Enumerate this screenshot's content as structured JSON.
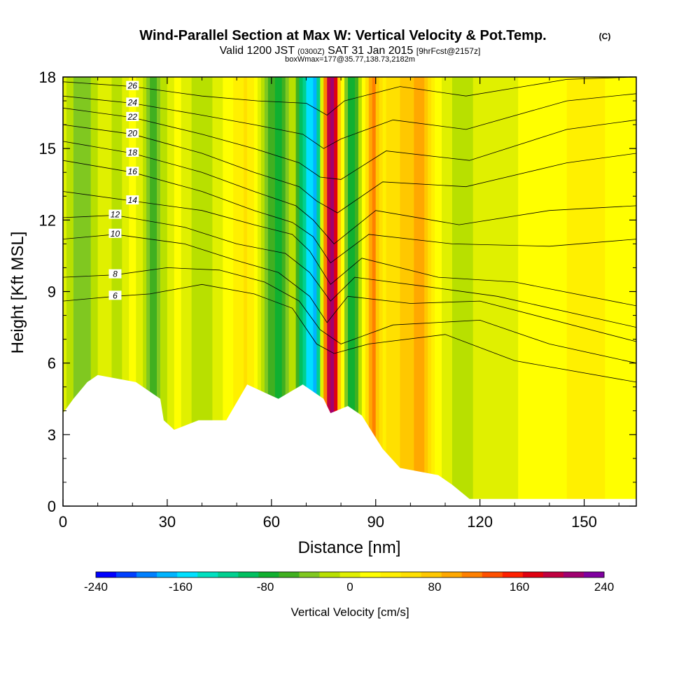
{
  "title": {
    "main": "Wind-Parallel Section at Max W: Vertical Velocity & Pot.Temp.",
    "copyright": "(C)",
    "valid_prefix": "Valid 1200 JST",
    "valid_utc": "(0300Z)",
    "valid_date": "SAT 31 Jan 2015",
    "forecast": "[9hrFcst@2157z]",
    "box": "boxWmax=177@35.77,138.73,2182m"
  },
  "chart_data": {
    "type": "heatmap",
    "xlabel": "Distance [nm]",
    "ylabel": "Height [Kft MSL]",
    "xlim": [
      0,
      165
    ],
    "ylim": [
      0,
      18
    ],
    "x_ticks": [
      0,
      30,
      60,
      90,
      120,
      150
    ],
    "y_ticks": [
      0,
      3,
      6,
      9,
      12,
      15,
      18
    ],
    "colorbar": {
      "label": "Vertical Velocity [cm/s]",
      "range": [
        -240,
        240
      ],
      "tick_values": [
        -240,
        -160,
        -80,
        0,
        80,
        160,
        240
      ],
      "tick_labels": [
        "-240",
        "-160",
        "-80",
        "0",
        "80",
        "160",
        "240"
      ],
      "colors": [
        "#0000ff",
        "#0040ff",
        "#0080ff",
        "#00b4ff",
        "#00e0ff",
        "#00e0c0",
        "#00d090",
        "#00c060",
        "#10b030",
        "#40b020",
        "#80c820",
        "#b8e000",
        "#e0f000",
        "#ffff00",
        "#fff000",
        "#ffe000",
        "#ffc800",
        "#ffa800",
        "#ff8000",
        "#ff5000",
        "#ff2000",
        "#e00010",
        "#c00040",
        "#a00070",
        "#8000a0"
      ]
    },
    "wind_bands_cm_s": [
      {
        "x": 0,
        "w": 0
      },
      {
        "x": 6,
        "w": -50
      },
      {
        "x": 12,
        "w": 10
      },
      {
        "x": 16,
        "w": -25
      },
      {
        "x": 20,
        "w": 25
      },
      {
        "x": 26,
        "w": -55
      },
      {
        "x": 33,
        "w": 20
      },
      {
        "x": 40,
        "w": -30
      },
      {
        "x": 47,
        "w": 15
      },
      {
        "x": 53,
        "w": 55
      },
      {
        "x": 58,
        "w": -20
      },
      {
        "x": 62,
        "w": -95
      },
      {
        "x": 66,
        "w": -10
      },
      {
        "x": 70,
        "w": -140
      },
      {
        "x": 73,
        "w": -175
      },
      {
        "x": 76,
        "w": 175
      },
      {
        "x": 78,
        "w": 215
      },
      {
        "x": 80,
        "w": 40
      },
      {
        "x": 83,
        "w": -100
      },
      {
        "x": 86,
        "w": 0
      },
      {
        "x": 89,
        "w": 120
      },
      {
        "x": 92,
        "w": 40
      },
      {
        "x": 97,
        "w": 70
      },
      {
        "x": 103,
        "w": 95
      },
      {
        "x": 108,
        "w": 20
      },
      {
        "x": 113,
        "w": -20
      },
      {
        "x": 120,
        "w": -5
      },
      {
        "x": 135,
        "w": 15
      },
      {
        "x": 150,
        "w": 35
      },
      {
        "x": 165,
        "w": 20
      }
    ],
    "terrain_kft": [
      {
        "x": 0,
        "z": 3.9
      },
      {
        "x": 3,
        "z": 4.5
      },
      {
        "x": 7,
        "z": 5.2
      },
      {
        "x": 10,
        "z": 5.5
      },
      {
        "x": 21,
        "z": 5.2
      },
      {
        "x": 25,
        "z": 4.8
      },
      {
        "x": 28,
        "z": 4.5
      },
      {
        "x": 29,
        "z": 3.6
      },
      {
        "x": 32,
        "z": 3.2
      },
      {
        "x": 39,
        "z": 3.6
      },
      {
        "x": 47,
        "z": 3.6
      },
      {
        "x": 53,
        "z": 5.1
      },
      {
        "x": 62,
        "z": 4.5
      },
      {
        "x": 69,
        "z": 5.1
      },
      {
        "x": 75,
        "z": 4.5
      },
      {
        "x": 77,
        "z": 3.9
      },
      {
        "x": 82,
        "z": 4.2
      },
      {
        "x": 86,
        "z": 3.8
      },
      {
        "x": 92,
        "z": 2.4
      },
      {
        "x": 97,
        "z": 1.6
      },
      {
        "x": 108,
        "z": 1.3
      },
      {
        "x": 112,
        "z": 0.9
      },
      {
        "x": 117,
        "z": 0.3
      },
      {
        "x": 165,
        "z": 0.3
      }
    ],
    "theta_contours": [
      {
        "label": "6",
        "points": [
          [
            0,
            8.6
          ],
          [
            15,
            8.8
          ],
          [
            25,
            8.9
          ],
          [
            40,
            9.3
          ],
          [
            55,
            8.9
          ],
          [
            66,
            8.3
          ],
          [
            73,
            6.8
          ],
          [
            78,
            6.4
          ],
          [
            88,
            6.8
          ],
          [
            110,
            7.2
          ],
          [
            130,
            6.1
          ],
          [
            165,
            5.2
          ]
        ]
      },
      {
        "label": "8",
        "points": [
          [
            0,
            9.6
          ],
          [
            15,
            9.7
          ],
          [
            30,
            10.0
          ],
          [
            45,
            9.9
          ],
          [
            58,
            9.4
          ],
          [
            68,
            8.6
          ],
          [
            74,
            7.4
          ],
          [
            80,
            6.8
          ],
          [
            95,
            7.6
          ],
          [
            120,
            7.8
          ],
          [
            140,
            6.8
          ],
          [
            165,
            6.0
          ]
        ]
      },
      {
        "label": "10",
        "points": [
          [
            0,
            11.2
          ],
          [
            15,
            11.4
          ],
          [
            35,
            11.0
          ],
          [
            50,
            10.3
          ],
          [
            62,
            9.8
          ],
          [
            71,
            8.8
          ],
          [
            76,
            7.7
          ],
          [
            82,
            8.8
          ],
          [
            100,
            8.5
          ],
          [
            120,
            8.6
          ],
          [
            165,
            6.9
          ]
        ]
      },
      {
        "label": "12",
        "points": [
          [
            0,
            12.1
          ],
          [
            15,
            12.2
          ],
          [
            35,
            11.7
          ],
          [
            50,
            11.0
          ],
          [
            64,
            10.6
          ],
          [
            71,
            9.8
          ],
          [
            77,
            8.6
          ],
          [
            84,
            9.6
          ],
          [
            105,
            9.2
          ],
          [
            125,
            8.8
          ],
          [
            165,
            7.5
          ]
        ]
      },
      {
        "label": "14",
        "points": [
          [
            0,
            13.2
          ],
          [
            20,
            12.8
          ],
          [
            40,
            12.4
          ],
          [
            55,
            11.8
          ],
          [
            66,
            11.4
          ],
          [
            71,
            10.7
          ],
          [
            77,
            9.3
          ],
          [
            86,
            10.4
          ],
          [
            108,
            9.6
          ],
          [
            130,
            9.4
          ],
          [
            165,
            8.4
          ]
        ]
      },
      {
        "label": "16",
        "points": [
          [
            0,
            14.5
          ],
          [
            20,
            14.0
          ],
          [
            40,
            13.2
          ],
          [
            55,
            12.4
          ],
          [
            66,
            11.9
          ],
          [
            72,
            11.3
          ],
          [
            77,
            10.2
          ],
          [
            88,
            11.4
          ],
          [
            112,
            11.0
          ],
          [
            140,
            10.9
          ],
          [
            165,
            11.2
          ]
        ]
      },
      {
        "label": "18",
        "points": [
          [
            0,
            15.3
          ],
          [
            20,
            14.8
          ],
          [
            40,
            14.0
          ],
          [
            55,
            13.2
          ],
          [
            67,
            12.6
          ],
          [
            72,
            12.0
          ],
          [
            78,
            11.0
          ],
          [
            90,
            12.4
          ],
          [
            114,
            11.8
          ],
          [
            140,
            12.4
          ],
          [
            165,
            12.6
          ]
        ]
      },
      {
        "label": "20",
        "points": [
          [
            0,
            16.0
          ],
          [
            20,
            15.6
          ],
          [
            40,
            14.8
          ],
          [
            55,
            14.0
          ],
          [
            68,
            13.4
          ],
          [
            73,
            12.8
          ],
          [
            79,
            12.3
          ],
          [
            92,
            13.6
          ],
          [
            116,
            13.4
          ],
          [
            145,
            14.4
          ],
          [
            165,
            14.8
          ]
        ]
      },
      {
        "label": "22",
        "points": [
          [
            0,
            16.7
          ],
          [
            20,
            16.3
          ],
          [
            40,
            15.6
          ],
          [
            55,
            15.0
          ],
          [
            68,
            14.4
          ],
          [
            74,
            13.8
          ],
          [
            80,
            13.7
          ],
          [
            93,
            14.9
          ],
          [
            117,
            14.5
          ],
          [
            145,
            15.8
          ],
          [
            165,
            16.2
          ]
        ]
      },
      {
        "label": "24",
        "points": [
          [
            0,
            17.2
          ],
          [
            20,
            16.9
          ],
          [
            40,
            16.4
          ],
          [
            55,
            16.0
          ],
          [
            69,
            15.6
          ],
          [
            75,
            15.0
          ],
          [
            80,
            15.4
          ],
          [
            95,
            16.2
          ],
          [
            116,
            15.8
          ],
          [
            145,
            17.0
          ],
          [
            165,
            17.3
          ]
        ]
      },
      {
        "label": "26",
        "points": [
          [
            0,
            17.8
          ],
          [
            20,
            17.6
          ],
          [
            40,
            17.2
          ],
          [
            56,
            17.0
          ],
          [
            70,
            16.9
          ],
          [
            76,
            16.4
          ],
          [
            81,
            17.0
          ],
          [
            97,
            17.6
          ],
          [
            116,
            17.2
          ],
          [
            145,
            17.9
          ],
          [
            165,
            18.0
          ]
        ]
      }
    ]
  }
}
